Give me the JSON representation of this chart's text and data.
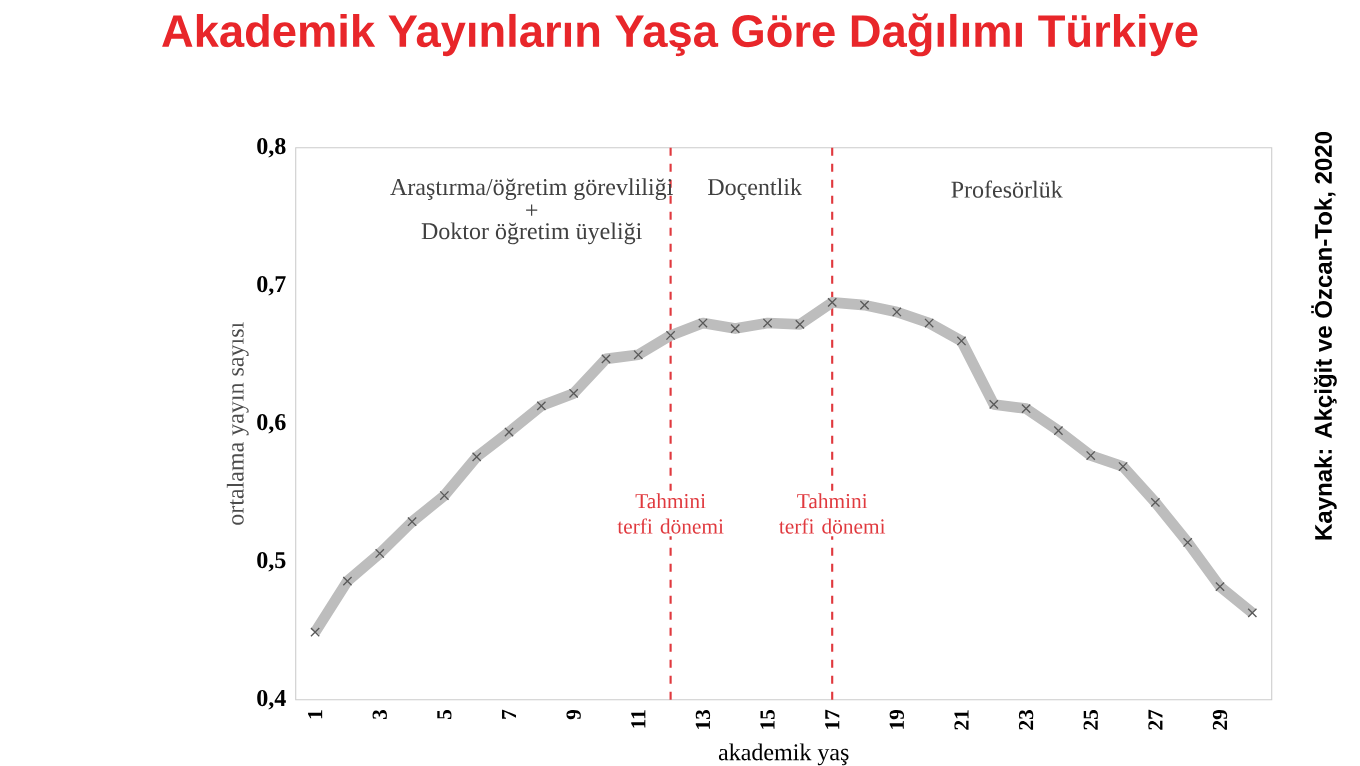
{
  "chart_data": {
    "type": "line",
    "title": "Akademik Yayınların Yaşa Göre Dağılımı Türkiye",
    "xlabel": "akademik yaş",
    "ylabel": "ortalama yayın sayısı",
    "x": [
      1,
      2,
      3,
      4,
      5,
      6,
      7,
      8,
      9,
      10,
      11,
      12,
      13,
      14,
      15,
      16,
      17,
      18,
      19,
      20,
      21,
      22,
      23,
      24,
      25,
      26,
      27,
      28,
      29,
      30
    ],
    "series": [
      {
        "color": "#bdbdbd",
        "values": [
          0.449,
          0.486,
          0.506,
          0.529,
          0.548,
          0.576,
          0.594,
          0.613,
          0.622,
          0.647,
          0.65,
          0.664,
          0.673,
          0.669,
          0.673,
          0.672,
          0.688,
          0.686,
          0.681,
          0.673,
          0.66,
          0.614,
          0.611,
          0.595,
          0.577,
          0.569,
          0.543,
          0.514,
          0.482,
          0.463
        ]
      }
    ],
    "marker": "cross",
    "line_style": "solid",
    "xlim": [
      0.4,
      30.6
    ],
    "ylim": [
      0.4,
      0.8
    ],
    "xticks": [
      1,
      3,
      5,
      7,
      9,
      11,
      13,
      15,
      17,
      19,
      21,
      23,
      25,
      27,
      29
    ],
    "yticks": [
      {
        "value": 0.4,
        "label": "0,4"
      },
      {
        "value": 0.5,
        "label": "0,5"
      },
      {
        "value": 0.6,
        "label": "0,6"
      },
      {
        "value": 0.7,
        "label": "0,7"
      },
      {
        "value": 0.8,
        "label": "0,8"
      }
    ],
    "ref_lines": [
      {
        "axis": "x",
        "value": 12,
        "label": "Tahmini terfi dönemi",
        "color": "#e0393e",
        "line_style": "dashed"
      },
      {
        "axis": "x",
        "value": 17,
        "label": "Tahmini terfi dönemi",
        "color": "#e0393e",
        "line_style": "dashed"
      }
    ],
    "annotations": [
      "Araştırma/öğretim görevliliği",
      "+",
      "Doktor öğretim üyeliği",
      "Doçentlik",
      "Profesörlük",
      "Kaynak: Akçiğit ve Özcan-Tok, 2020"
    ]
  }
}
